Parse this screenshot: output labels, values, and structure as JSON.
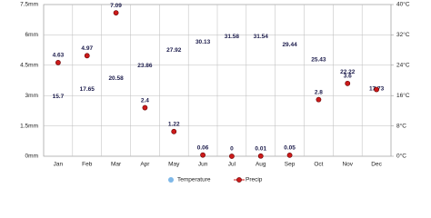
{
  "chart_data": {
    "type": "line",
    "categories": [
      "Jan",
      "Feb",
      "Mar",
      "Apr",
      "May",
      "Jun",
      "Jul",
      "Aug",
      "Sep",
      "Oct",
      "Nov",
      "Dec"
    ],
    "series": [
      {
        "name": "Temperature",
        "color": "#7fb8e8",
        "axis": "y2",
        "markers": false,
        "values": [
          15.7,
          17.65,
          20.58,
          23.86,
          27.92,
          30.13,
          31.58,
          31.54,
          29.44,
          25.43,
          22.22,
          17.73
        ]
      },
      {
        "name": "Precip",
        "color": "#cc1a1a",
        "axis": "y",
        "values": [
          4.63,
          4.97,
          7.09,
          2.4,
          1.22,
          0.06,
          0,
          0.01,
          0.05,
          2.8,
          3.6,
          3.3
        ],
        "value_labels": [
          "4.63",
          "4.97",
          "7.09",
          "2.4",
          "1.22",
          "0.06",
          "0",
          "0.01",
          "0.05",
          "2.8",
          "3.6",
          null
        ]
      }
    ],
    "ylim": [
      0,
      7.5
    ],
    "yticks": [
      {
        "value": 0,
        "label": "0mm"
      },
      {
        "value": 1.5,
        "label": "1.5mm"
      },
      {
        "value": 3,
        "label": "3mm"
      },
      {
        "value": 4.5,
        "label": "4.5mm"
      },
      {
        "value": 6,
        "label": "6mm"
      },
      {
        "value": 7.5,
        "label": "7.5mm"
      }
    ],
    "y2lim": [
      0,
      40
    ],
    "y2ticks": [
      {
        "value": 0,
        "label": "0°C"
      },
      {
        "value": 8,
        "label": "8°C"
      },
      {
        "value": 16,
        "label": "16°C"
      },
      {
        "value": 24,
        "label": "24°C"
      },
      {
        "value": 32,
        "label": "32°C"
      },
      {
        "value": 40,
        "label": "40°C"
      }
    ],
    "grid": true
  }
}
